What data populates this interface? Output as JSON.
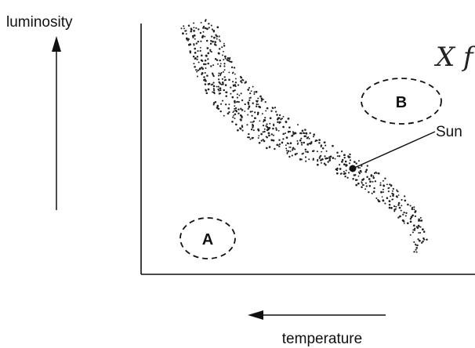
{
  "y_axis_label": "luminosity",
  "x_axis_label": "temperature",
  "regions": [
    {
      "label": "A"
    },
    {
      "label": "B"
    }
  ],
  "sun_label": "Sun",
  "margin_note": "X f",
  "colors": {
    "ink": "#111111",
    "background": "#ffffff"
  }
}
